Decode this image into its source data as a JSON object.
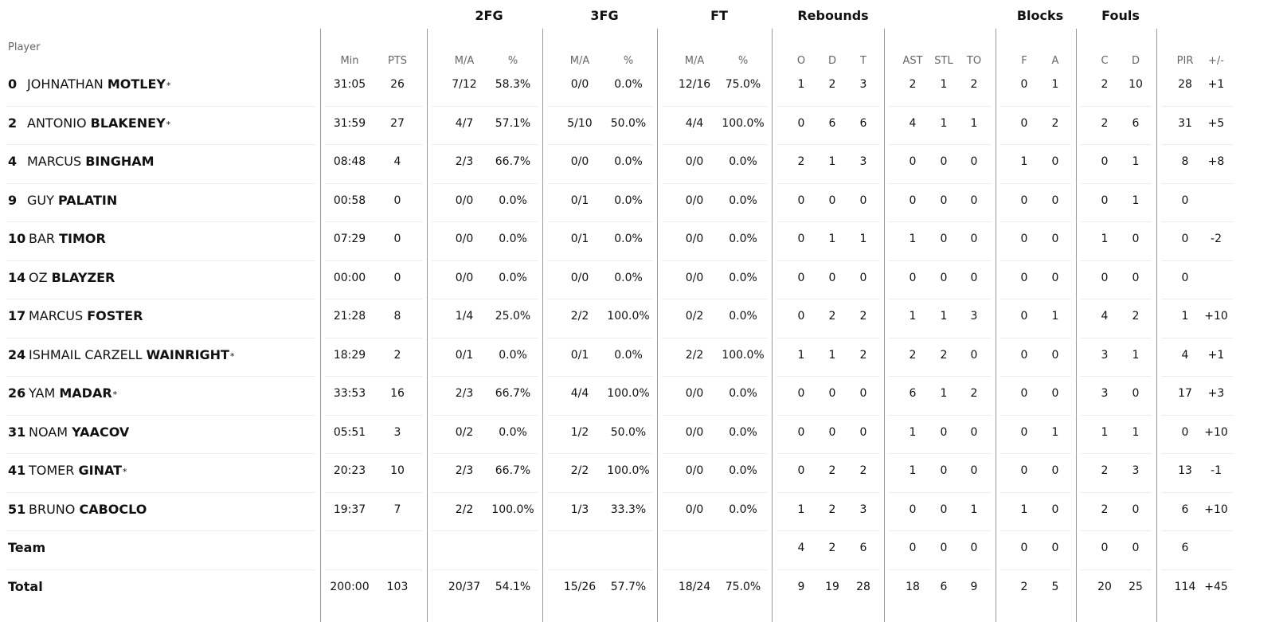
{
  "header": {
    "player_label": "Player",
    "groups": [
      "2FG",
      "3FG",
      "FT",
      "Rebounds",
      "Blocks",
      "Fouls"
    ],
    "subheaders": [
      "Min",
      "PTS",
      "M/A",
      "%",
      "M/A",
      "%",
      "M/A",
      "%",
      "O",
      "D",
      "T",
      "AST",
      "STL",
      "TO",
      "F",
      "A",
      "C",
      "D",
      "PIR",
      "+/-"
    ]
  },
  "players": [
    {
      "number": "0",
      "first": "JOHNATHAN",
      "last": "MOTLEY",
      "starter": true,
      "stats": [
        "31:05",
        "26",
        "7/12",
        "58.3%",
        "0/0",
        "0.0%",
        "12/16",
        "75.0%",
        "1",
        "2",
        "3",
        "2",
        "1",
        "2",
        "0",
        "1",
        "2",
        "10",
        "28",
        "+1"
      ]
    },
    {
      "number": "2",
      "first": "ANTONIO",
      "last": "BLAKENEY",
      "starter": true,
      "stats": [
        "31:59",
        "27",
        "4/7",
        "57.1%",
        "5/10",
        "50.0%",
        "4/4",
        "100.0%",
        "0",
        "6",
        "6",
        "4",
        "1",
        "1",
        "0",
        "2",
        "2",
        "6",
        "31",
        "+5"
      ]
    },
    {
      "number": "4",
      "first": "MARCUS",
      "last": "BINGHAM",
      "starter": false,
      "stats": [
        "08:48",
        "4",
        "2/3",
        "66.7%",
        "0/0",
        "0.0%",
        "0/0",
        "0.0%",
        "2",
        "1",
        "3",
        "0",
        "0",
        "0",
        "1",
        "0",
        "0",
        "1",
        "8",
        "+8"
      ]
    },
    {
      "number": "9",
      "first": "GUY",
      "last": "PALATIN",
      "starter": false,
      "stats": [
        "00:58",
        "0",
        "0/0",
        "0.0%",
        "0/1",
        "0.0%",
        "0/0",
        "0.0%",
        "0",
        "0",
        "0",
        "0",
        "0",
        "0",
        "0",
        "0",
        "0",
        "1",
        "0",
        ""
      ]
    },
    {
      "number": "10",
      "first": "BAR",
      "last": "TIMOR",
      "starter": false,
      "stats": [
        "07:29",
        "0",
        "0/0",
        "0.0%",
        "0/1",
        "0.0%",
        "0/0",
        "0.0%",
        "0",
        "1",
        "1",
        "1",
        "0",
        "0",
        "0",
        "0",
        "1",
        "0",
        "0",
        "-2"
      ]
    },
    {
      "number": "14",
      "first": "OZ",
      "last": "BLAYZER",
      "starter": false,
      "stats": [
        "00:00",
        "0",
        "0/0",
        "0.0%",
        "0/0",
        "0.0%",
        "0/0",
        "0.0%",
        "0",
        "0",
        "0",
        "0",
        "0",
        "0",
        "0",
        "0",
        "0",
        "0",
        "0",
        ""
      ]
    },
    {
      "number": "17",
      "first": "MARCUS",
      "last": "FOSTER",
      "starter": false,
      "stats": [
        "21:28",
        "8",
        "1/4",
        "25.0%",
        "2/2",
        "100.0%",
        "0/2",
        "0.0%",
        "0",
        "2",
        "2",
        "1",
        "1",
        "3",
        "0",
        "1",
        "4",
        "2",
        "1",
        "+10"
      ]
    },
    {
      "number": "24",
      "first": "ISHMAIL CARZELL",
      "last": "WAINRIGHT",
      "starter": true,
      "stats": [
        "18:29",
        "2",
        "0/1",
        "0.0%",
        "0/1",
        "0.0%",
        "2/2",
        "100.0%",
        "1",
        "1",
        "2",
        "2",
        "2",
        "0",
        "0",
        "0",
        "3",
        "1",
        "4",
        "+1"
      ]
    },
    {
      "number": "26",
      "first": "YAM",
      "last": "MADAR",
      "starter": true,
      "stats": [
        "33:53",
        "16",
        "2/3",
        "66.7%",
        "4/4",
        "100.0%",
        "0/0",
        "0.0%",
        "0",
        "0",
        "0",
        "6",
        "1",
        "2",
        "0",
        "0",
        "3",
        "0",
        "17",
        "+3"
      ]
    },
    {
      "number": "31",
      "first": "NOAM",
      "last": "YAACOV",
      "starter": false,
      "stats": [
        "05:51",
        "3",
        "0/2",
        "0.0%",
        "1/2",
        "50.0%",
        "0/0",
        "0.0%",
        "0",
        "0",
        "0",
        "1",
        "0",
        "0",
        "0",
        "1",
        "1",
        "1",
        "0",
        "+10"
      ]
    },
    {
      "number": "41",
      "first": "TOMER",
      "last": "GINAT",
      "starter": true,
      "stats": [
        "20:23",
        "10",
        "2/3",
        "66.7%",
        "2/2",
        "100.0%",
        "0/0",
        "0.0%",
        "0",
        "2",
        "2",
        "1",
        "0",
        "0",
        "0",
        "0",
        "2",
        "3",
        "13",
        "-1"
      ]
    },
    {
      "number": "51",
      "first": "BRUNO",
      "last": "CABOCLO",
      "starter": false,
      "stats": [
        "19:37",
        "7",
        "2/2",
        "100.0%",
        "1/3",
        "33.3%",
        "0/0",
        "0.0%",
        "1",
        "2",
        "3",
        "0",
        "0",
        "1",
        "1",
        "0",
        "2",
        "0",
        "6",
        "+10"
      ]
    }
  ],
  "team": {
    "label": "Team",
    "stats": [
      "",
      "",
      "",
      "",
      "",
      "",
      "",
      "",
      "4",
      "2",
      "6",
      "0",
      "0",
      "0",
      "0",
      "0",
      "0",
      "0",
      "6",
      ""
    ]
  },
  "total": {
    "label": "Total",
    "stats": [
      "200:00",
      "103",
      "20/37",
      "54.1%",
      "15/26",
      "57.7%",
      "18/24",
      "75.0%",
      "9",
      "19",
      "28",
      "18",
      "6",
      "9",
      "2",
      "5",
      "20",
      "25",
      "114",
      "+45"
    ]
  },
  "starter_mark": "*"
}
